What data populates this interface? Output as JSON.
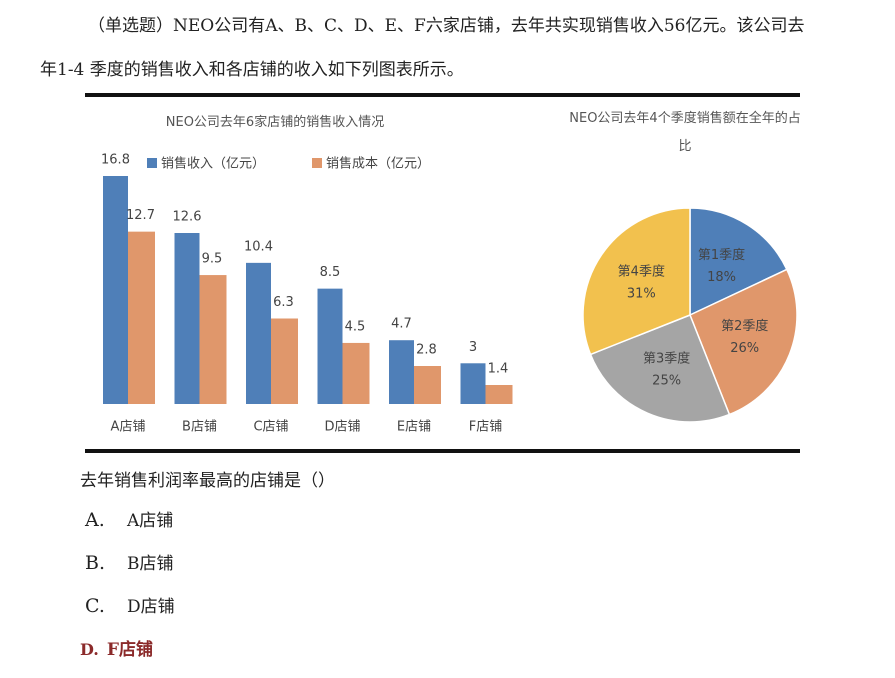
{
  "intro": "（单选题）NEO公司有A、B、C、D、E、F六家店铺，去年共实现销售收入56亿元。该公司去年1-4 季度的销售收入和各店铺的收入如下列图表所示。",
  "chart_data": [
    {
      "type": "bar",
      "title": "NEO公司去年6家店铺的销售收入情况",
      "categories": [
        "A店铺",
        "B店铺",
        "C店铺",
        "D店铺",
        "E店铺",
        "F店铺"
      ],
      "series": [
        {
          "name": "销售收入（亿元）",
          "color": "#4f7fb8",
          "values": [
            16.8,
            12.6,
            10.4,
            8.5,
            4.7,
            3
          ]
        },
        {
          "name": "销售成本（亿元）",
          "color": "#e0976b",
          "values": [
            12.7,
            9.5,
            6.3,
            4.5,
            2.8,
            1.4
          ]
        }
      ]
    },
    {
      "type": "pie",
      "title": "NEO公司去年4个季度销售额在全年的占比",
      "categories": [
        "第1季度",
        "第2季度",
        "第3季度",
        "第4季度"
      ],
      "values": [
        18,
        26,
        25,
        31
      ],
      "value_labels": [
        "18%",
        "26%",
        "25%",
        "31%"
      ],
      "colors": [
        "#4f7fb8",
        "#e0976b",
        "#a5a5a5",
        "#f2c14e"
      ]
    }
  ],
  "question": "去年销售利润率最高的店铺是（）",
  "options": [
    {
      "letter": "A.",
      "text": "A店铺"
    },
    {
      "letter": "B.",
      "text": "B店铺"
    },
    {
      "letter": "C.",
      "text": "D店铺"
    },
    {
      "letter": "D.",
      "text": "F店铺"
    }
  ]
}
